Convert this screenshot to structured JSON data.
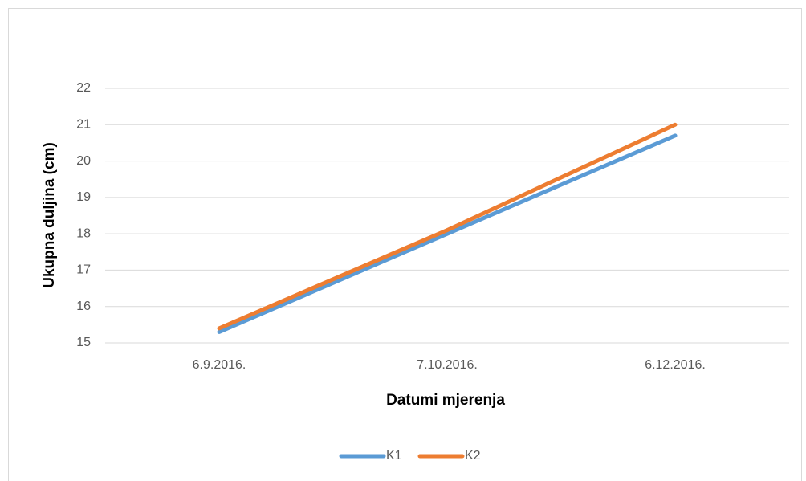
{
  "chart_data": {
    "type": "line",
    "x_label": "Datumi mjerenja",
    "y_label": "Ukupna duljina (cm)",
    "categories": [
      "6.9.2016.",
      "7.10.2016.",
      "6.12.2016."
    ],
    "series": [
      {
        "name": "K1",
        "color": "#5b9bd5",
        "values": [
          15.3,
          18.0,
          20.7
        ]
      },
      {
        "name": "K2",
        "color": "#ed7d31",
        "values": [
          15.4,
          18.1,
          21.0
        ]
      }
    ],
    "ylim": [
      15,
      22
    ],
    "yticks": [
      15,
      16,
      17,
      18,
      19,
      20,
      21,
      22
    ],
    "grid": true,
    "legend": "bottom"
  }
}
